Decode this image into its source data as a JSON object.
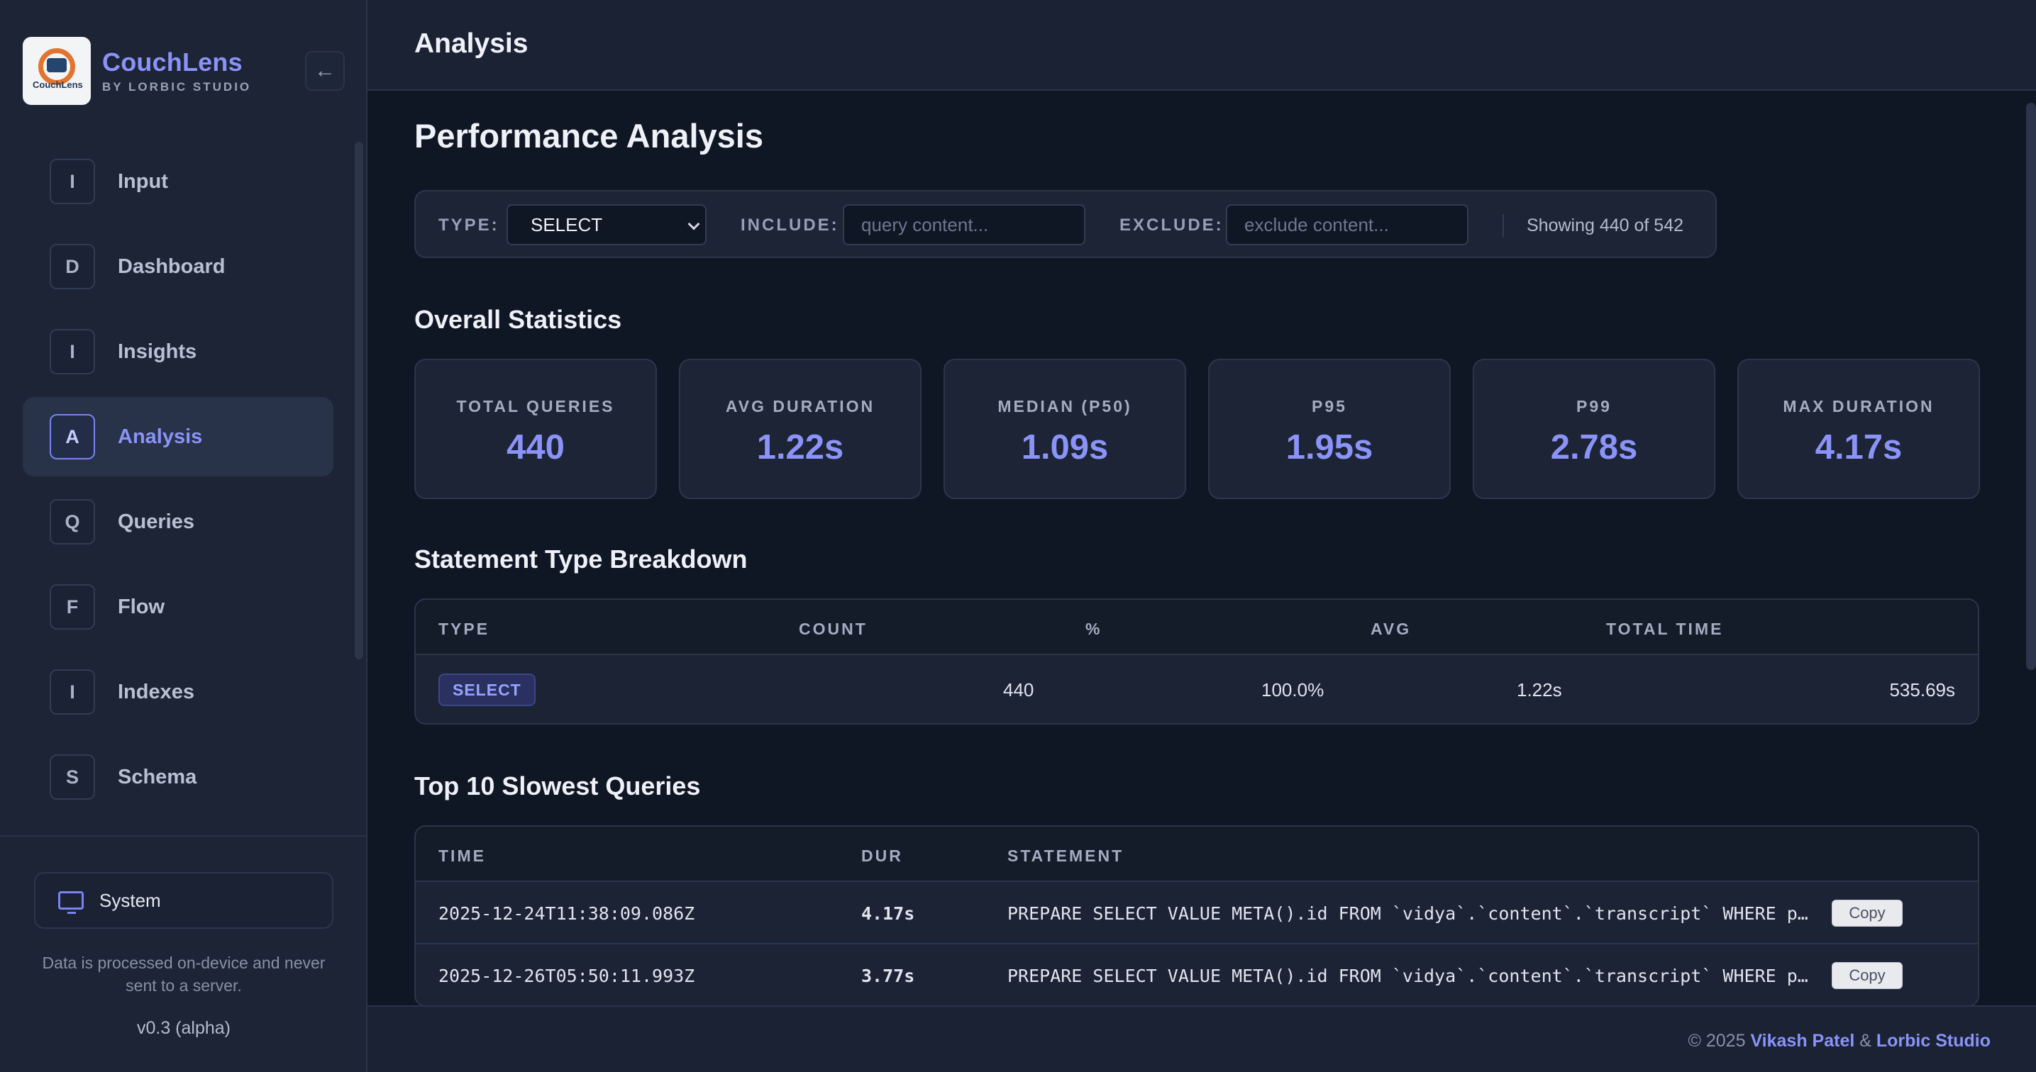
{
  "brand": {
    "name": "CouchLens",
    "subtitle": "BY LORBIC STUDIO",
    "logo_text": "CouchLens",
    "collapse_icon": "←"
  },
  "sidebar": {
    "items": [
      {
        "badge": "I",
        "label": "Input",
        "active": false
      },
      {
        "badge": "D",
        "label": "Dashboard",
        "active": false
      },
      {
        "badge": "I",
        "label": "Insights",
        "active": false
      },
      {
        "badge": "A",
        "label": "Analysis",
        "active": true
      },
      {
        "badge": "Q",
        "label": "Queries",
        "active": false
      },
      {
        "badge": "F",
        "label": "Flow",
        "active": false
      },
      {
        "badge": "I",
        "label": "Indexes",
        "active": false
      },
      {
        "badge": "S",
        "label": "Schema",
        "active": false
      }
    ],
    "theme_label": "System",
    "privacy_note": "Data is processed on-device and never sent to a server.",
    "version": "v0.3 (alpha)"
  },
  "header": {
    "title": "Analysis"
  },
  "page": {
    "title": "Performance Analysis"
  },
  "filter": {
    "type_label": "TYPE:",
    "type_value": "SELECT",
    "include_label": "INCLUDE:",
    "include_placeholder": "query content...",
    "exclude_label": "EXCLUDE:",
    "exclude_placeholder": "exclude content...",
    "count_text": "Showing 440 of 542"
  },
  "overall": {
    "title": "Overall Statistics",
    "stats": [
      {
        "label": "TOTAL QUERIES",
        "value": "440"
      },
      {
        "label": "AVG DURATION",
        "value": "1.22s"
      },
      {
        "label": "MEDIAN (P50)",
        "value": "1.09s"
      },
      {
        "label": "P95",
        "value": "1.95s"
      },
      {
        "label": "P99",
        "value": "2.78s"
      },
      {
        "label": "MAX DURATION",
        "value": "4.17s"
      }
    ]
  },
  "breakdown": {
    "title": "Statement Type Breakdown",
    "headers": [
      "TYPE",
      "COUNT",
      "%",
      "AVG",
      "TOTAL TIME"
    ],
    "rows": [
      {
        "type": "SELECT",
        "count": "440",
        "pct": "100.0%",
        "avg": "1.22s",
        "total": "535.69s"
      }
    ]
  },
  "slowest": {
    "title": "Top 10 Slowest Queries",
    "headers": [
      "TIME",
      "DUR",
      "STATEMENT"
    ],
    "copy_label": "Copy",
    "rows": [
      {
        "time": "2025-12-24T11:38:09.086Z",
        "dur": "4.17s",
        "statement": "PREPARE SELECT VALUE META().id FROM `vidya`.`content`.`transcript` WHERE p…"
      },
      {
        "time": "2025-12-26T05:50:11.993Z",
        "dur": "3.77s",
        "statement": "PREPARE SELECT VALUE META().id FROM `vidya`.`content`.`transcript` WHERE p…"
      }
    ]
  },
  "footer": {
    "copyright": "© 2025",
    "author": "Vikash Patel",
    "amp": "&",
    "studio": "Lorbic Studio"
  },
  "colors": {
    "accent": "#8b93f8",
    "background": "#0f1624",
    "panel": "#1c2436"
  }
}
